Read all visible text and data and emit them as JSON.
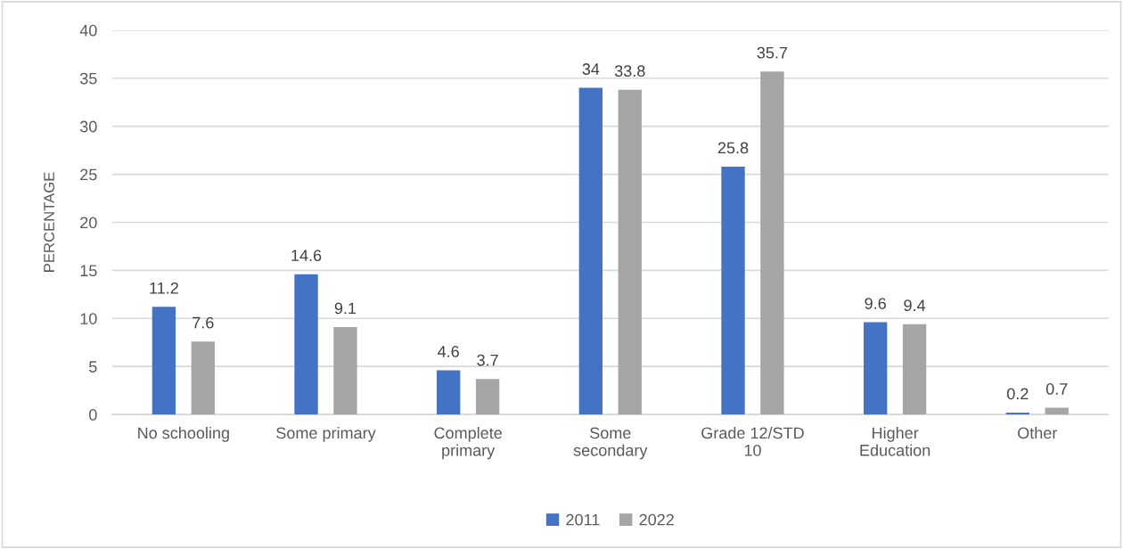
{
  "chart_data": {
    "type": "bar",
    "ylabel": "PERCENTAGE",
    "categories": [
      "No schooling",
      "Some primary",
      "Complete primary",
      "Some secondary",
      "Grade 12/STD 10",
      "Higher Education",
      "Other"
    ],
    "series": [
      {
        "name": "2011",
        "color": "#4472c4",
        "values": [
          11.2,
          14.6,
          4.6,
          34,
          25.8,
          9.6,
          0.2
        ]
      },
      {
        "name": "2022",
        "color": "#a5a5a5",
        "values": [
          7.6,
          9.1,
          3.7,
          33.8,
          35.7,
          9.4,
          0.7
        ]
      }
    ],
    "ylim": [
      0,
      40
    ],
    "yticks": [
      0,
      5,
      10,
      15,
      20,
      25,
      30,
      35,
      40
    ],
    "grid": "y",
    "legend": "bottom",
    "data_labels": true
  }
}
